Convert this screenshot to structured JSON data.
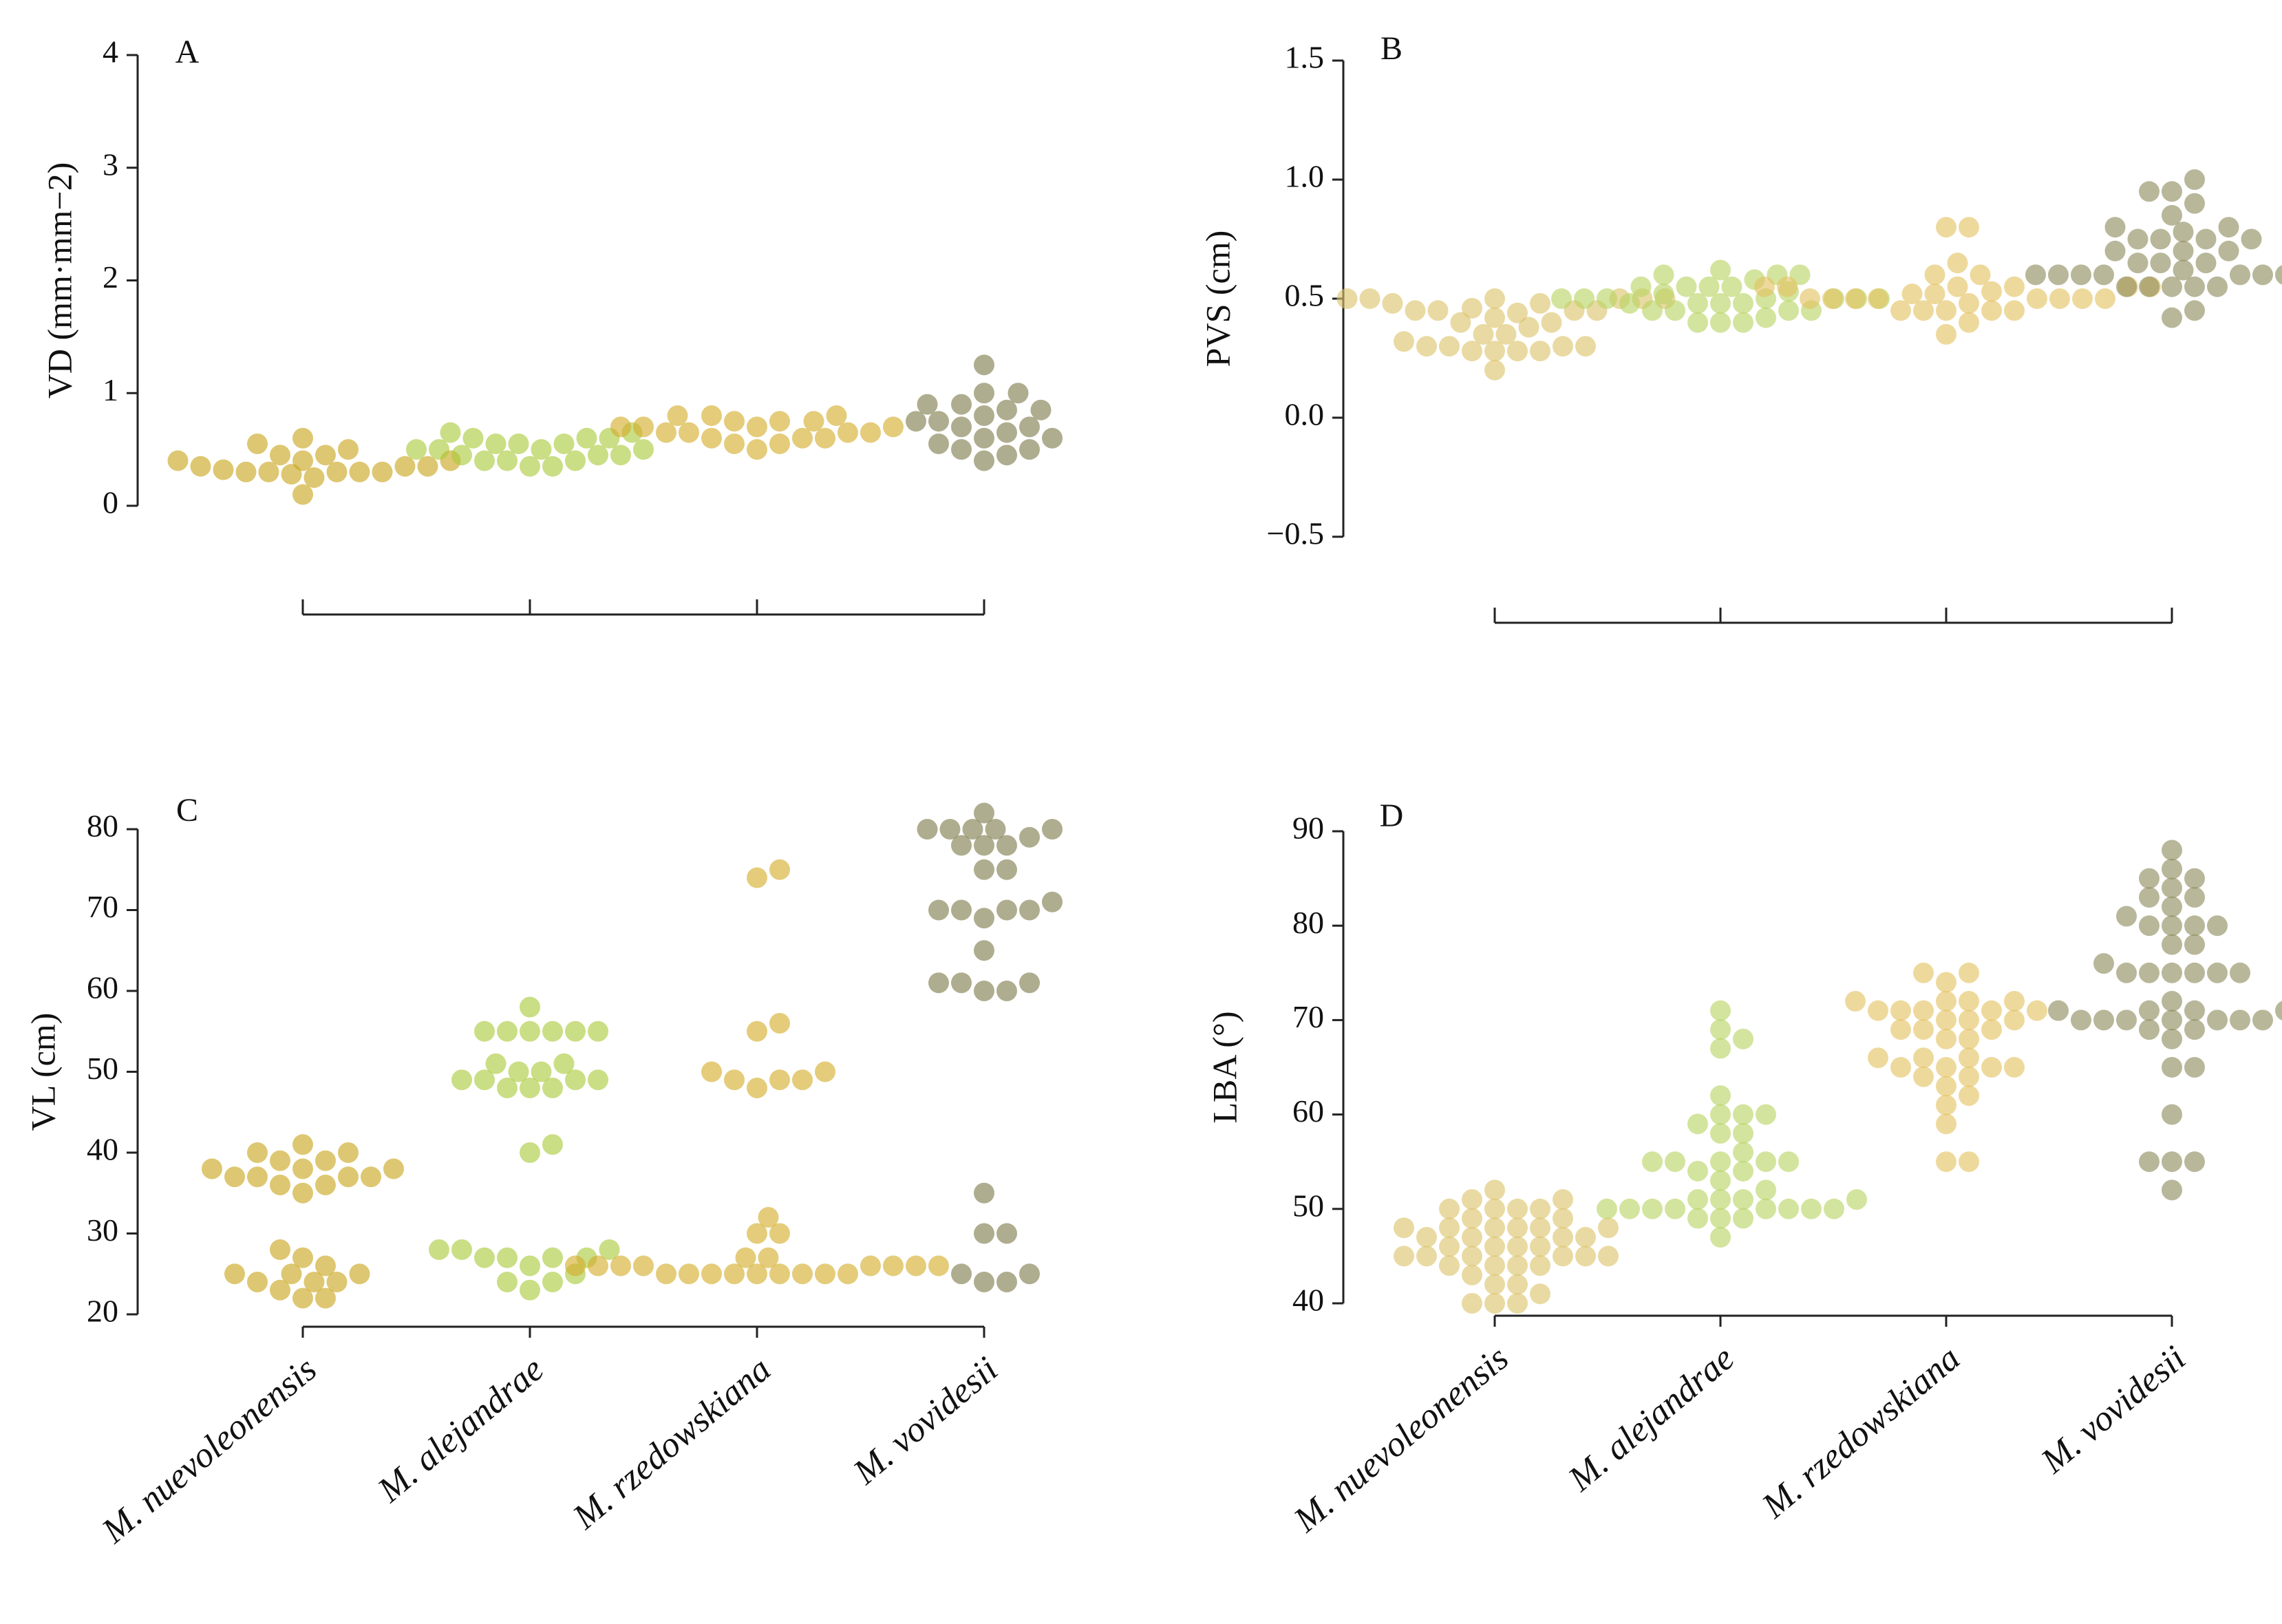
{
  "chart_data": [
    {
      "panel": "A",
      "type": "scatter",
      "ylabel": "VD (mm·mm−2)",
      "ylim": [
        0,
        4
      ],
      "yticks": [
        "0",
        "1",
        "2",
        "3",
        "4"
      ],
      "category_labels_shown": false,
      "categories": [
        "M. nuevoleonensis",
        "M. alejandrae",
        "M. rzedowskiana",
        "M. vovidesii"
      ],
      "series": [
        {
          "name": "M. nuevoleonensis",
          "color": "#c9a41c",
          "values": [
            0.3,
            0.3,
            0.55,
            0.6,
            0.45,
            0.35,
            0.1,
            0.3,
            0.4,
            0.35,
            0.4,
            0.45,
            0.3,
            0.25,
            0.35,
            0.3,
            0.5,
            0.4,
            0.32,
            0.28
          ]
        },
        {
          "name": "M. alejandrae",
          "color": "#a9c93a",
          "values": [
            0.6,
            0.55,
            0.5,
            0.65,
            0.45,
            0.4,
            0.35,
            0.6,
            0.55,
            0.4,
            0.5,
            0.45,
            0.6,
            0.65,
            0.5,
            0.4,
            0.45,
            0.55,
            0.35,
            0.5
          ]
        },
        {
          "name": "M. rzedowskiana",
          "color": "#d4ad2a",
          "values": [
            0.65,
            0.7,
            0.6,
            0.75,
            0.55,
            0.8,
            0.65,
            0.7,
            0.6,
            0.75,
            0.8,
            0.65,
            0.5,
            0.7,
            0.6,
            0.75,
            0.65,
            0.7,
            0.55,
            0.8
          ]
        },
        {
          "name": "M. vovidesii",
          "color": "#7e7b4a",
          "values": [
            1.0,
            0.9,
            0.85,
            0.7,
            0.6,
            0.5,
            0.4,
            1.25,
            0.75,
            0.65,
            0.55,
            0.9,
            1.0,
            0.7,
            0.8,
            0.6,
            0.45,
            0.75,
            0.85,
            0.5
          ]
        }
      ]
    },
    {
      "panel": "B",
      "type": "scatter",
      "ylabel": "PVS (cm)",
      "ylim": [
        -0.5,
        1.5
      ],
      "yticks": [
        "−0.5",
        "0.0",
        "0.5",
        "1.0",
        "1.5"
      ],
      "category_labels_shown": false,
      "categories": [
        "M. nuevoleonensis",
        "M. alejandrae",
        "M. rzedowskiana",
        "M. vovidesii"
      ],
      "series": [
        {
          "name": "M. nuevoleonensis",
          "color": "#dcc36a",
          "values": [
            0.48,
            0.42,
            0.35,
            0.3,
            0.28,
            0.45,
            0.5,
            0.4,
            0.3,
            0.2,
            0.38,
            0.5,
            0.45,
            0.28,
            0.3,
            0.5,
            0.45,
            0.28,
            0.3,
            0.5,
            0.45,
            0.32,
            0.48,
            0.5,
            0.44,
            0.28,
            0.35,
            0.4,
            0.5,
            0.46
          ]
        },
        {
          "name": "M. alejandrae",
          "color": "#b8d462",
          "values": [
            0.48,
            0.45,
            0.5,
            0.48,
            0.5,
            0.55,
            0.45,
            0.6,
            0.5,
            0.4,
            0.62,
            0.55,
            0.4,
            0.5,
            0.58,
            0.6,
            0.4,
            0.5,
            0.55,
            0.45,
            0.48,
            0.52,
            0.5,
            0.6,
            0.42,
            0.55,
            0.5,
            0.48,
            0.45,
            0.53
          ]
        },
        {
          "name": "M. rzedowskiana",
          "color": "#e3c261",
          "values": [
            0.55,
            0.45,
            0.5,
            0.55,
            0.45,
            0.5,
            0.55,
            0.45,
            0.5,
            0.55,
            0.45,
            0.5,
            0.55,
            0.5,
            0.8,
            0.65,
            0.6,
            0.5,
            0.35,
            0.45,
            0.8,
            0.6,
            0.55,
            0.4,
            0.52,
            0.5,
            0.53,
            0.48,
            0.52,
            0.5
          ]
        },
        {
          "name": "M. vovidesii",
          "color": "#8c8a5c",
          "values": [
            0.62,
            0.55,
            0.45,
            0.7,
            0.6,
            0.75,
            0.55,
            0.6,
            0.8,
            0.65,
            0.55,
            0.6,
            0.75,
            0.9,
            0.6,
            0.55,
            1.0,
            0.8,
            0.7,
            0.6,
            0.85,
            0.55,
            0.65,
            0.6,
            0.75,
            0.42,
            0.95,
            0.7,
            0.6,
            0.95,
            0.78,
            0.6,
            0.75,
            0.6,
            0.65
          ]
        }
      ]
    },
    {
      "panel": "C",
      "type": "scatter",
      "ylabel": "VL (cm)",
      "ylim": [
        20,
        80
      ],
      "yticks": [
        "20",
        "30",
        "40",
        "50",
        "60",
        "70",
        "80"
      ],
      "category_labels_shown": true,
      "categories": [
        "M. nuevoleonensis",
        "M. alejandrae",
        "M. rzedowskiana",
        "M. vovidesii"
      ],
      "series": [
        {
          "name": "M. nuevoleonensis",
          "color": "#c9a41c",
          "values": [
            37,
            40,
            39,
            36,
            35,
            38,
            41,
            38,
            37,
            36,
            40,
            37,
            38,
            39,
            37,
            28,
            25,
            24,
            22,
            25,
            26,
            24,
            27,
            23,
            22,
            25,
            24
          ]
        },
        {
          "name": "M. alejandrae",
          "color": "#a9c93a",
          "values": [
            55,
            49,
            48,
            51,
            55,
            49,
            48,
            50,
            55,
            49,
            55,
            51,
            55,
            48,
            58,
            50,
            49,
            55,
            41,
            40,
            27,
            28,
            27,
            25,
            24,
            23,
            28,
            27,
            26,
            24,
            27,
            28
          ]
        },
        {
          "name": "M. rzedowskiana",
          "color": "#d4ad2a",
          "values": [
            75,
            74,
            56,
            55,
            49,
            49,
            50,
            49,
            50,
            48,
            32,
            30,
            30,
            26,
            25,
            26,
            25,
            27,
            26,
            25,
            26,
            25,
            26,
            25,
            27,
            25,
            26,
            25,
            26,
            25,
            25,
            26
          ]
        },
        {
          "name": "M. vovidesii",
          "color": "#7e7b4a",
          "values": [
            78,
            80,
            80,
            80,
            79,
            82,
            75,
            75,
            80,
            78,
            80,
            78,
            70,
            70,
            71,
            70,
            69,
            70,
            65,
            61,
            61,
            61,
            60,
            60,
            35,
            30,
            30,
            25,
            25,
            24,
            24
          ]
        }
      ]
    },
    {
      "panel": "D",
      "type": "scatter",
      "ylabel": "LBA (°)",
      "ylim": [
        40,
        90
      ],
      "yticks": [
        "40",
        "50",
        "60",
        "70",
        "80",
        "90"
      ],
      "category_labels_shown": true,
      "categories": [
        "M. nuevoleonensis",
        "M. alejandrae",
        "M. rzedowskiana",
        "M. vovidesii"
      ],
      "series": [
        {
          "name": "M. nuevoleonensis",
          "color": "#dcc36a",
          "values": [
            50,
            51,
            49,
            48,
            47,
            50,
            45,
            45,
            46,
            44,
            44,
            48,
            47,
            45,
            40,
            40,
            42,
            46,
            50,
            52,
            51,
            48,
            47,
            45,
            44,
            43,
            42,
            40,
            41,
            46,
            45,
            48,
            49,
            50,
            48,
            47,
            46,
            45,
            44,
            48
          ]
        },
        {
          "name": "M. alejandrae",
          "color": "#b8d462",
          "values": [
            49,
            51,
            50,
            55,
            50,
            49,
            55,
            50,
            49,
            55,
            50,
            51,
            55,
            58,
            50,
            60,
            69,
            47,
            62,
            59,
            51,
            60,
            58,
            55,
            50,
            71,
            68,
            67,
            52,
            54,
            56,
            50,
            54,
            53,
            51,
            60,
            50
          ]
        },
        {
          "name": "M. rzedowskiana",
          "color": "#e3c261",
          "values": [
            71,
            69,
            71,
            71,
            72,
            72,
            66,
            70,
            65,
            69,
            75,
            71,
            68,
            61,
            65,
            69,
            74,
            72,
            55,
            63,
            64,
            59,
            55,
            71,
            70,
            65,
            66,
            62,
            75,
            70,
            65,
            66,
            64,
            68,
            72
          ]
        },
        {
          "name": "M. vovidesii",
          "color": "#8c8a5c",
          "values": [
            70,
            70,
            71,
            71,
            81,
            80,
            70,
            70,
            75,
            55,
            85,
            71,
            86,
            75,
            70,
            55,
            83,
            80,
            78,
            72,
            76,
            84,
            88,
            75,
            60,
            65,
            69,
            85,
            80,
            75,
            70,
            65,
            55,
            52,
            83,
            78,
            71,
            69,
            82,
            75,
            70,
            80,
            75,
            68
          ]
        }
      ]
    }
  ]
}
